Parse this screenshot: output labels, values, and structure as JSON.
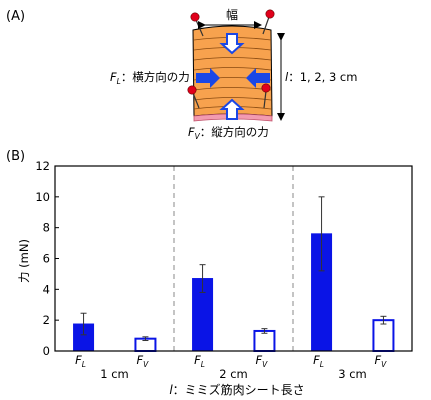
{
  "panel_a": {
    "label": "(A)",
    "width_label": "幅",
    "fl_symbol": "F",
    "fl_sub": "L",
    "fl_label": "：横方向の力",
    "fv_symbol": "F",
    "fv_sub": "V",
    "fv_label": "：縦方向の力",
    "l_symbol": "l",
    "l_values": "：1, 2, 3 cm"
  },
  "chart_data": {
    "type": "bar",
    "panel_label": "(B)",
    "ylabel": "力 (mN)",
    "ylim": [
      0,
      12
    ],
    "yticks": [
      0,
      2,
      4,
      6,
      8,
      10,
      12
    ],
    "xlabel_symbol": "l",
    "xlabel": "：ミミズ筋肉シート長さ",
    "groups": [
      "1 cm",
      "2 cm",
      "3 cm"
    ],
    "bar_symbol": "F",
    "bar_subscripts": [
      "L",
      "V"
    ],
    "series": [
      {
        "name": "L",
        "fill": "solid",
        "values": [
          1.75,
          4.7,
          7.6
        ],
        "errors": [
          0.7,
          0.9,
          2.4
        ]
      },
      {
        "name": "V",
        "fill": "hollow",
        "values": [
          0.8,
          1.3,
          2.0
        ],
        "errors": [
          0.12,
          0.15,
          0.25
        ]
      }
    ],
    "colors": {
      "bar": "#0a14e6",
      "axis": "#000000",
      "divider": "#888888"
    }
  }
}
